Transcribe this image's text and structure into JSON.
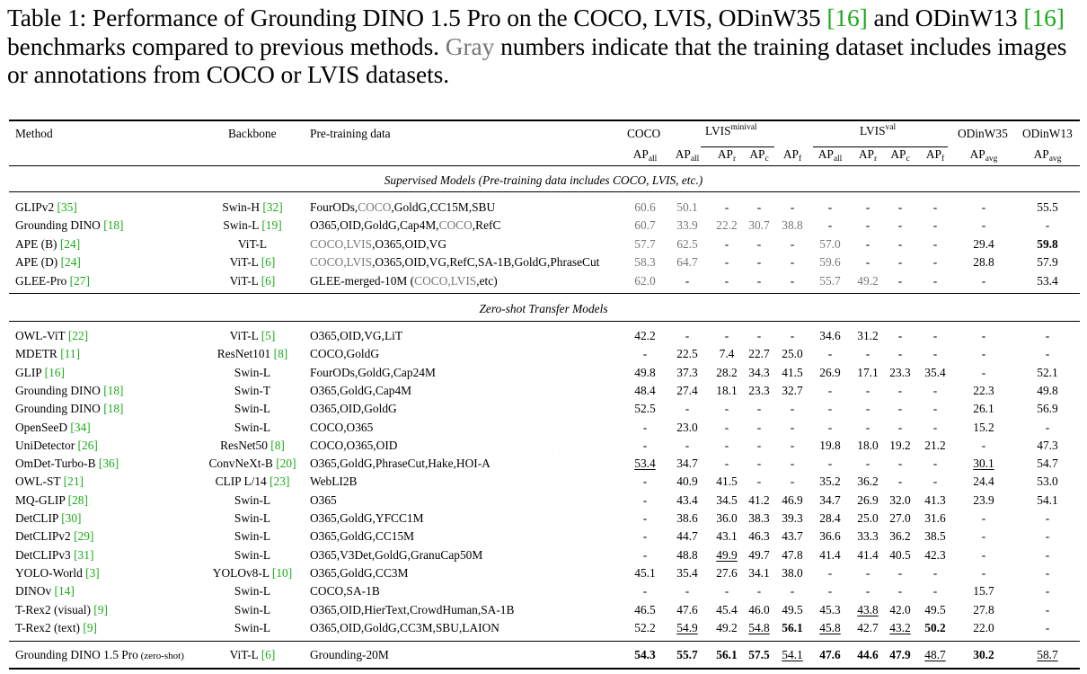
{
  "caption": {
    "label": "Table 1:",
    "text_a": " Performance of Grounding DINO 1.5 Pro on the COCO, LVIS, ODinW35 ",
    "ref1": "[16]",
    "text_b": " and ODinW13 ",
    "ref2": "[16]",
    "text_c": " benchmarks compared to previous methods. ",
    "gray_word": "Gray",
    "text_d": " numbers indicate that the training dataset includes images or annotations from COCO or LVIS datasets."
  },
  "header": {
    "method": "Method",
    "backbone": "Backbone",
    "pretraining": "Pre-training data",
    "coco": "COCO",
    "lvis_minival": "LVIS",
    "lvis_minival_sup": "minival",
    "lvis_val": "LVIS",
    "lvis_val_sup": "val",
    "odinw35": "ODinW35",
    "odinw13": "ODinW13",
    "sub": {
      "ap": "AP",
      "all": "all",
      "r": "r",
      "c": "c",
      "f": "f",
      "avg": "avg"
    }
  },
  "sections": {
    "supervised": "Supervised Models (Pre-training data includes COCO, LVIS, etc.)",
    "zeroshot": "Zero-shot Transfer Models"
  },
  "rows_supervised": [
    {
      "method": "GLIPv2",
      "mref": "[35]",
      "backbone": "Swin-H",
      "bref": "[32]",
      "data": [
        [
          "FourODs,",
          0
        ],
        [
          "COCO",
          1
        ],
        [
          ",GoldG,CC15M,SBU",
          0
        ]
      ],
      "vals": [
        [
          "60.6",
          "g"
        ],
        [
          "50.1",
          "g"
        ],
        [
          "-",
          ""
        ],
        [
          "-",
          ""
        ],
        [
          "-",
          ""
        ],
        [
          "-",
          ""
        ],
        [
          "-",
          ""
        ],
        [
          "-",
          ""
        ],
        [
          "-",
          ""
        ],
        [
          "-",
          ""
        ],
        [
          "55.5",
          ""
        ]
      ]
    },
    {
      "method": "Grounding DINO",
      "mref": "[18]",
      "backbone": "Swin-L",
      "bref": "[19]",
      "data": [
        [
          "O365,OID,GoldG,Cap4M,",
          0
        ],
        [
          "COCO",
          1
        ],
        [
          ",RefC",
          0
        ]
      ],
      "vals": [
        [
          "60.7",
          "g"
        ],
        [
          "33.9",
          "g"
        ],
        [
          "22.2",
          "g"
        ],
        [
          "30.7",
          "g"
        ],
        [
          "38.8",
          "g"
        ],
        [
          "-",
          ""
        ],
        [
          "-",
          ""
        ],
        [
          "-",
          ""
        ],
        [
          "-",
          ""
        ],
        [
          "-",
          ""
        ],
        [
          "-",
          ""
        ]
      ]
    },
    {
      "method": "APE (B)",
      "mref": "[24]",
      "backbone": "ViT-L",
      "bref": "",
      "data": [
        [
          "COCO,LVIS",
          1
        ],
        [
          ",O365,OID,VG",
          0
        ]
      ],
      "vals": [
        [
          "57.7",
          "g"
        ],
        [
          "62.5",
          "g"
        ],
        [
          "-",
          ""
        ],
        [
          "-",
          ""
        ],
        [
          "-",
          ""
        ],
        [
          "57.0",
          "g"
        ],
        [
          "-",
          ""
        ],
        [
          "-",
          ""
        ],
        [
          "-",
          ""
        ],
        [
          "29.4",
          ""
        ],
        [
          "59.8",
          "b"
        ]
      ]
    },
    {
      "method": "APE (D)",
      "mref": "[24]",
      "backbone": "ViT-L",
      "bref": "[6]",
      "data": [
        [
          "COCO,LVIS",
          1
        ],
        [
          ",O365,OID,VG,RefC,SA-1B,GoldG,PhraseCut",
          0
        ]
      ],
      "vals": [
        [
          "58.3",
          "g"
        ],
        [
          "64.7",
          "g"
        ],
        [
          "-",
          ""
        ],
        [
          "-",
          ""
        ],
        [
          "-",
          ""
        ],
        [
          "59.6",
          "g"
        ],
        [
          "-",
          ""
        ],
        [
          "-",
          ""
        ],
        [
          "-",
          ""
        ],
        [
          "28.8",
          ""
        ],
        [
          "57.9",
          ""
        ]
      ]
    },
    {
      "method": "GLEE-Pro",
      "mref": "[27]",
      "backbone": "ViT-L",
      "bref": "[6]",
      "data": [
        [
          "GLEE-merged-10M (",
          0
        ],
        [
          "COCO,LVIS",
          1
        ],
        [
          ",etc)",
          0
        ]
      ],
      "vals": [
        [
          "62.0",
          "g"
        ],
        [
          "-",
          ""
        ],
        [
          "-",
          ""
        ],
        [
          "-",
          ""
        ],
        [
          "-",
          ""
        ],
        [
          "55.7",
          "g"
        ],
        [
          "49.2",
          "g"
        ],
        [
          "-",
          ""
        ],
        [
          "-",
          ""
        ],
        [
          "-",
          ""
        ],
        [
          "53.4",
          ""
        ]
      ]
    }
  ],
  "rows_zeroshot": [
    {
      "method": "OWL-ViT",
      "mref": "[22]",
      "backbone": "ViT-L",
      "bref": "[5]",
      "data": [
        [
          "O365,OID,VG,LiT",
          0
        ]
      ],
      "vals": [
        [
          "42.2",
          ""
        ],
        [
          "-",
          ""
        ],
        [
          "-",
          ""
        ],
        [
          "-",
          ""
        ],
        [
          "-",
          ""
        ],
        [
          "34.6",
          ""
        ],
        [
          "31.2",
          ""
        ],
        [
          "-",
          ""
        ],
        [
          "-",
          ""
        ],
        [
          "-",
          ""
        ],
        [
          "-",
          ""
        ]
      ]
    },
    {
      "method": "MDETR",
      "mref": "[11]",
      "backbone": "ResNet101",
      "bref": "[8]",
      "data": [
        [
          "COCO,GoldG",
          0
        ]
      ],
      "vals": [
        [
          "-",
          ""
        ],
        [
          "22.5",
          ""
        ],
        [
          "7.4",
          ""
        ],
        [
          "22.7",
          ""
        ],
        [
          "25.0",
          ""
        ],
        [
          "-",
          ""
        ],
        [
          "-",
          ""
        ],
        [
          "-",
          ""
        ],
        [
          "-",
          ""
        ],
        [
          "-",
          ""
        ],
        [
          "-",
          ""
        ]
      ]
    },
    {
      "method": "GLIP",
      "mref": "[16]",
      "backbone": "Swin-L",
      "bref": "",
      "data": [
        [
          "FourODs,GoldG,Cap24M",
          0
        ]
      ],
      "vals": [
        [
          "49.8",
          ""
        ],
        [
          "37.3",
          ""
        ],
        [
          "28.2",
          ""
        ],
        [
          "34.3",
          ""
        ],
        [
          "41.5",
          ""
        ],
        [
          "26.9",
          ""
        ],
        [
          "17.1",
          ""
        ],
        [
          "23.3",
          ""
        ],
        [
          "35.4",
          ""
        ],
        [
          "-",
          ""
        ],
        [
          "52.1",
          ""
        ]
      ]
    },
    {
      "method": "Grounding DINO",
      "mref": "[18]",
      "backbone": "Swin-T",
      "bref": "",
      "data": [
        [
          "O365,GoldG,Cap4M",
          0
        ]
      ],
      "vals": [
        [
          "48.4",
          ""
        ],
        [
          "27.4",
          ""
        ],
        [
          "18.1",
          ""
        ],
        [
          "23.3",
          ""
        ],
        [
          "32.7",
          ""
        ],
        [
          "-",
          ""
        ],
        [
          "-",
          ""
        ],
        [
          "-",
          ""
        ],
        [
          "-",
          ""
        ],
        [
          "22.3",
          ""
        ],
        [
          "49.8",
          ""
        ]
      ]
    },
    {
      "method": "Grounding DINO",
      "mref": "[18]",
      "backbone": "Swin-L",
      "bref": "",
      "data": [
        [
          "O365,OID,GoldG",
          0
        ]
      ],
      "vals": [
        [
          "52.5",
          ""
        ],
        [
          "-",
          ""
        ],
        [
          "-",
          ""
        ],
        [
          "-",
          ""
        ],
        [
          "-",
          ""
        ],
        [
          "-",
          ""
        ],
        [
          "-",
          ""
        ],
        [
          "-",
          ""
        ],
        [
          "-",
          ""
        ],
        [
          "26.1",
          ""
        ],
        [
          "56.9",
          ""
        ]
      ]
    },
    {
      "method": "OpenSeeD",
      "mref": "[34]",
      "backbone": "Swin-L",
      "bref": "",
      "data": [
        [
          "COCO,O365",
          0
        ]
      ],
      "vals": [
        [
          "-",
          ""
        ],
        [
          "23.0",
          ""
        ],
        [
          "-",
          ""
        ],
        [
          "-",
          ""
        ],
        [
          "-",
          ""
        ],
        [
          "-",
          ""
        ],
        [
          "-",
          ""
        ],
        [
          "-",
          ""
        ],
        [
          "-",
          ""
        ],
        [
          "15.2",
          ""
        ],
        [
          "-",
          ""
        ]
      ]
    },
    {
      "method": "UniDetector",
      "mref": "[26]",
      "backbone": "ResNet50",
      "bref": "[8]",
      "data": [
        [
          "COCO,O365,OID",
          0
        ]
      ],
      "vals": [
        [
          "-",
          ""
        ],
        [
          "-",
          ""
        ],
        [
          "-",
          ""
        ],
        [
          "-",
          ""
        ],
        [
          "-",
          ""
        ],
        [
          "19.8",
          ""
        ],
        [
          "18.0",
          ""
        ],
        [
          "19.2",
          ""
        ],
        [
          "21.2",
          ""
        ],
        [
          "-",
          ""
        ],
        [
          "47.3",
          ""
        ]
      ]
    },
    {
      "method": "OmDet-Turbo-B",
      "mref": "[36]",
      "backbone": "ConvNeXt-B",
      "bref": "[20]",
      "data": [
        [
          "O365,GoldG,PhraseCut,Hake,HOI-A",
          0
        ]
      ],
      "vals": [
        [
          "53.4",
          "u"
        ],
        [
          "34.7",
          ""
        ],
        [
          "-",
          ""
        ],
        [
          "-",
          ""
        ],
        [
          "-",
          ""
        ],
        [
          "-",
          ""
        ],
        [
          "-",
          ""
        ],
        [
          "-",
          ""
        ],
        [
          "-",
          ""
        ],
        [
          "30.1",
          "u"
        ],
        [
          "54.7",
          ""
        ]
      ]
    },
    {
      "method": "OWL-ST",
      "mref": "[21]",
      "backbone": "CLIP L/14",
      "bref": "[23]",
      "data": [
        [
          "WebLI2B",
          0
        ]
      ],
      "vals": [
        [
          "-",
          ""
        ],
        [
          "40.9",
          ""
        ],
        [
          "41.5",
          ""
        ],
        [
          "-",
          ""
        ],
        [
          "-",
          ""
        ],
        [
          "35.2",
          ""
        ],
        [
          "36.2",
          ""
        ],
        [
          "-",
          ""
        ],
        [
          "-",
          ""
        ],
        [
          "24.4",
          ""
        ],
        [
          "53.0",
          ""
        ]
      ]
    },
    {
      "method": "MQ-GLIP",
      "mref": "[28]",
      "backbone": "Swin-L",
      "bref": "",
      "data": [
        [
          "O365",
          0
        ]
      ],
      "vals": [
        [
          "-",
          ""
        ],
        [
          "43.4",
          ""
        ],
        [
          "34.5",
          ""
        ],
        [
          "41.2",
          ""
        ],
        [
          "46.9",
          ""
        ],
        [
          "34.7",
          ""
        ],
        [
          "26.9",
          ""
        ],
        [
          "32.0",
          ""
        ],
        [
          "41.3",
          ""
        ],
        [
          "23.9",
          ""
        ],
        [
          "54.1",
          ""
        ]
      ]
    },
    {
      "method": "DetCLIP",
      "mref": "[30]",
      "backbone": "Swin-L",
      "bref": "",
      "data": [
        [
          "O365,GoldG,YFCC1M",
          0
        ]
      ],
      "vals": [
        [
          "-",
          ""
        ],
        [
          "38.6",
          ""
        ],
        [
          "36.0",
          ""
        ],
        [
          "38.3",
          ""
        ],
        [
          "39.3",
          ""
        ],
        [
          "28.4",
          ""
        ],
        [
          "25.0",
          ""
        ],
        [
          "27.0",
          ""
        ],
        [
          "31.6",
          ""
        ],
        [
          "-",
          ""
        ],
        [
          "-",
          ""
        ]
      ]
    },
    {
      "method": "DetCLIPv2",
      "mref": "[29]",
      "backbone": "Swin-L",
      "bref": "",
      "data": [
        [
          "O365,GoldG,CC15M",
          0
        ]
      ],
      "vals": [
        [
          "-",
          ""
        ],
        [
          "44.7",
          ""
        ],
        [
          "43.1",
          ""
        ],
        [
          "46.3",
          ""
        ],
        [
          "43.7",
          ""
        ],
        [
          "36.6",
          ""
        ],
        [
          "33.3",
          ""
        ],
        [
          "36.2",
          ""
        ],
        [
          "38.5",
          ""
        ],
        [
          "-",
          ""
        ],
        [
          "-",
          ""
        ]
      ]
    },
    {
      "method": "DetCLIPv3",
      "mref": "[31]",
      "backbone": "Swin-L",
      "bref": "",
      "data": [
        [
          "O365,V3Det,GoldG,GranuCap50M",
          0
        ]
      ],
      "vals": [
        [
          "-",
          ""
        ],
        [
          "48.8",
          ""
        ],
        [
          "49.9",
          "u"
        ],
        [
          "49.7",
          ""
        ],
        [
          "47.8",
          ""
        ],
        [
          "41.4",
          ""
        ],
        [
          "41.4",
          ""
        ],
        [
          "40.5",
          ""
        ],
        [
          "42.3",
          ""
        ],
        [
          "-",
          ""
        ],
        [
          "-",
          ""
        ]
      ]
    },
    {
      "method": "YOLO-World",
      "mref": "[3]",
      "backbone": "YOLOv8-L",
      "bref": "[10]",
      "data": [
        [
          "O365,GoldG,CC3M",
          0
        ]
      ],
      "vals": [
        [
          "45.1",
          ""
        ],
        [
          "35.4",
          ""
        ],
        [
          "27.6",
          ""
        ],
        [
          "34.1",
          ""
        ],
        [
          "38.0",
          ""
        ],
        [
          "-",
          ""
        ],
        [
          "-",
          ""
        ],
        [
          "-",
          ""
        ],
        [
          "-",
          ""
        ],
        [
          "-",
          ""
        ],
        [
          "-",
          ""
        ]
      ]
    },
    {
      "method": "DINOv",
      "mref": "[14]",
      "backbone": "Swin-L",
      "bref": "",
      "data": [
        [
          "COCO,SA-1B",
          0
        ]
      ],
      "vals": [
        [
          "-",
          ""
        ],
        [
          "-",
          ""
        ],
        [
          "-",
          ""
        ],
        [
          "-",
          ""
        ],
        [
          "-",
          ""
        ],
        [
          "-",
          ""
        ],
        [
          "-",
          ""
        ],
        [
          "-",
          ""
        ],
        [
          "-",
          ""
        ],
        [
          "15.7",
          ""
        ],
        [
          "-",
          ""
        ]
      ]
    },
    {
      "method": "T-Rex2 (visual)",
      "mref": "[9]",
      "backbone": "Swin-L",
      "bref": "",
      "data": [
        [
          "O365,OID,HierText,CrowdHuman,SA-1B",
          0
        ]
      ],
      "vals": [
        [
          "46.5",
          ""
        ],
        [
          "47.6",
          ""
        ],
        [
          "45.4",
          ""
        ],
        [
          "46.0",
          ""
        ],
        [
          "49.5",
          ""
        ],
        [
          "45.3",
          ""
        ],
        [
          "43.8",
          "u"
        ],
        [
          "42.0",
          ""
        ],
        [
          "49.5",
          ""
        ],
        [
          "27.8",
          ""
        ],
        [
          "-",
          ""
        ]
      ]
    },
    {
      "method": "T-Rex2 (text)",
      "mref": "[9]",
      "backbone": "Swin-L",
      "bref": "",
      "data": [
        [
          "O365,OID,GoldG,CC3M,SBU,LAION",
          0
        ]
      ],
      "vals": [
        [
          "52.2",
          ""
        ],
        [
          "54.9",
          "u"
        ],
        [
          "49.2",
          ""
        ],
        [
          "54.8",
          "u"
        ],
        [
          "56.1",
          "b"
        ],
        [
          "45.8",
          "u"
        ],
        [
          "42.7",
          ""
        ],
        [
          "43.2",
          "u"
        ],
        [
          "50.2",
          "b"
        ],
        [
          "22.0",
          ""
        ],
        [
          "-",
          ""
        ]
      ]
    }
  ],
  "row_ours": {
    "method": "Grounding DINO 1.5 Pro",
    "suffix": "(zero-shot)",
    "backbone": "ViT-L",
    "bref": "[6]",
    "data": [
      [
        "Grounding-20M",
        0
      ]
    ],
    "vals": [
      [
        "54.3",
        "b"
      ],
      [
        "55.7",
        "b"
      ],
      [
        "56.1",
        "b"
      ],
      [
        "57.5",
        "b"
      ],
      [
        "54.1",
        "u"
      ],
      [
        "47.6",
        "b"
      ],
      [
        "44.6",
        "b"
      ],
      [
        "47.9",
        "b"
      ],
      [
        "48.7",
        "u"
      ],
      [
        "30.2",
        "b"
      ],
      [
        "58.7",
        "u"
      ]
    ]
  },
  "colors": {
    "ref_green": "#1aab1a",
    "gray_value": "#777777"
  }
}
